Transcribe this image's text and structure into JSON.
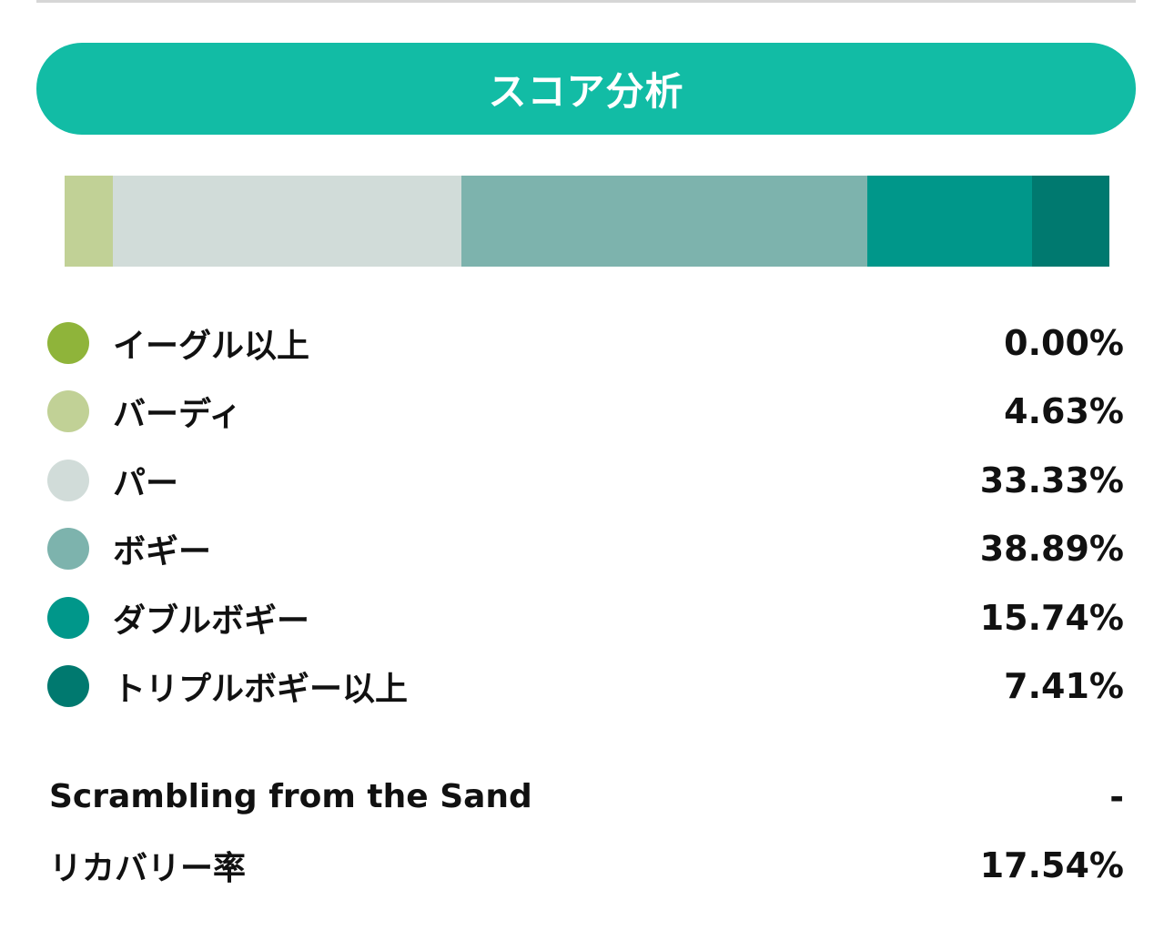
{
  "header": {
    "title": "スコア分析"
  },
  "score_distribution": {
    "categories": [
      {
        "label": "イーグル以上",
        "value_text": "0.00%",
        "percent": 0.0,
        "color": "#8fb43a"
      },
      {
        "label": "バーディ",
        "value_text": "4.63%",
        "percent": 4.63,
        "color": "#c1d196"
      },
      {
        "label": "パー",
        "value_text": "33.33%",
        "percent": 33.33,
        "color": "#d1dcd9"
      },
      {
        "label": "ボギー",
        "value_text": "38.89%",
        "percent": 38.89,
        "color": "#7db3ad"
      },
      {
        "label": "ダブルボギー",
        "value_text": "15.74%",
        "percent": 15.74,
        "color": "#00978a"
      },
      {
        "label": "トリプルボギー以上",
        "value_text": "7.41%",
        "percent": 7.41,
        "color": "#00796f"
      }
    ]
  },
  "stats": [
    {
      "label": "Scrambling from the Sand",
      "value": "-"
    },
    {
      "label": "リカバリー率",
      "value": "17.54%"
    }
  ]
}
